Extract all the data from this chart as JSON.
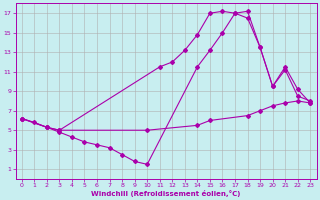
{
  "xlabel": "Windchill (Refroidissement éolien,°C)",
  "background_color": "#c8eef0",
  "grid_color": "#b0b0b0",
  "line_color": "#aa00aa",
  "xlim": [
    -0.5,
    23.5
  ],
  "ylim": [
    0,
    18
  ],
  "xticks": [
    0,
    1,
    2,
    3,
    4,
    5,
    6,
    7,
    8,
    9,
    10,
    11,
    12,
    13,
    14,
    15,
    16,
    17,
    18,
    19,
    20,
    21,
    22,
    23
  ],
  "yticks": [
    1,
    3,
    5,
    7,
    9,
    11,
    13,
    15,
    17
  ],
  "line1_x": [
    0,
    1,
    2,
    3,
    10,
    14,
    15,
    18,
    19,
    20,
    21,
    22,
    23
  ],
  "line1_y": [
    6.2,
    5.8,
    5.3,
    5.0,
    5.0,
    5.5,
    6.0,
    6.5,
    7.0,
    7.5,
    7.8,
    8.0,
    7.8
  ],
  "line2_x": [
    0,
    2,
    3,
    4,
    5,
    6,
    7,
    8,
    9,
    10,
    14,
    15,
    16,
    17,
    18,
    19,
    20,
    21,
    22,
    23
  ],
  "line2_y": [
    6.2,
    5.3,
    4.8,
    4.3,
    3.8,
    3.5,
    3.2,
    2.5,
    1.8,
    1.5,
    11.5,
    13.2,
    15.0,
    17.0,
    17.2,
    13.5,
    9.5,
    11.5,
    9.2,
    7.8
  ],
  "line3_x": [
    0,
    2,
    3,
    11,
    12,
    13,
    14,
    15,
    16,
    17,
    18,
    19,
    20,
    21,
    22,
    23
  ],
  "line3_y": [
    6.2,
    5.3,
    5.0,
    11.5,
    12.0,
    13.2,
    14.8,
    17.0,
    17.2,
    17.0,
    16.5,
    13.5,
    9.5,
    11.2,
    8.5,
    8.0
  ]
}
